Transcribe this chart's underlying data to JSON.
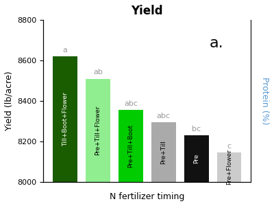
{
  "title": "Yield",
  "xlabel": "N fertilizer timing",
  "ylabel": "Yield (lb/acre)",
  "ylabel_right": "Protein (%)",
  "panel_label": "a.",
  "categories": [
    "Till+Boot+Flower",
    "Pre+Till+Flower",
    "Pre+Till+Boot",
    "Pre+Till",
    "Pre",
    "Pre+Flower"
  ],
  "values": [
    8620,
    8510,
    8355,
    8295,
    8230,
    8145
  ],
  "bar_colors": [
    "#1a5c00",
    "#90ee90",
    "#00cc00",
    "#aaaaaa",
    "#111111",
    "#cccccc"
  ],
  "text_colors": [
    "white",
    "black",
    "black",
    "black",
    "white",
    "black"
  ],
  "stat_labels": [
    "a",
    "ab",
    "abc",
    "abc",
    "bc",
    "c"
  ],
  "ylim": [
    8000,
    8800
  ],
  "yticks": [
    8000,
    8200,
    8400,
    8600,
    8800
  ],
  "stat_label_color": "#999999",
  "background_color": "#ffffff",
  "title_fontsize": 12,
  "axis_fontsize": 9,
  "tick_fontsize": 8,
  "stat_fontsize": 8,
  "panel_fontsize": 16,
  "bar_label_fontsize": 6.5,
  "right_label_color": "#5b9bd5"
}
